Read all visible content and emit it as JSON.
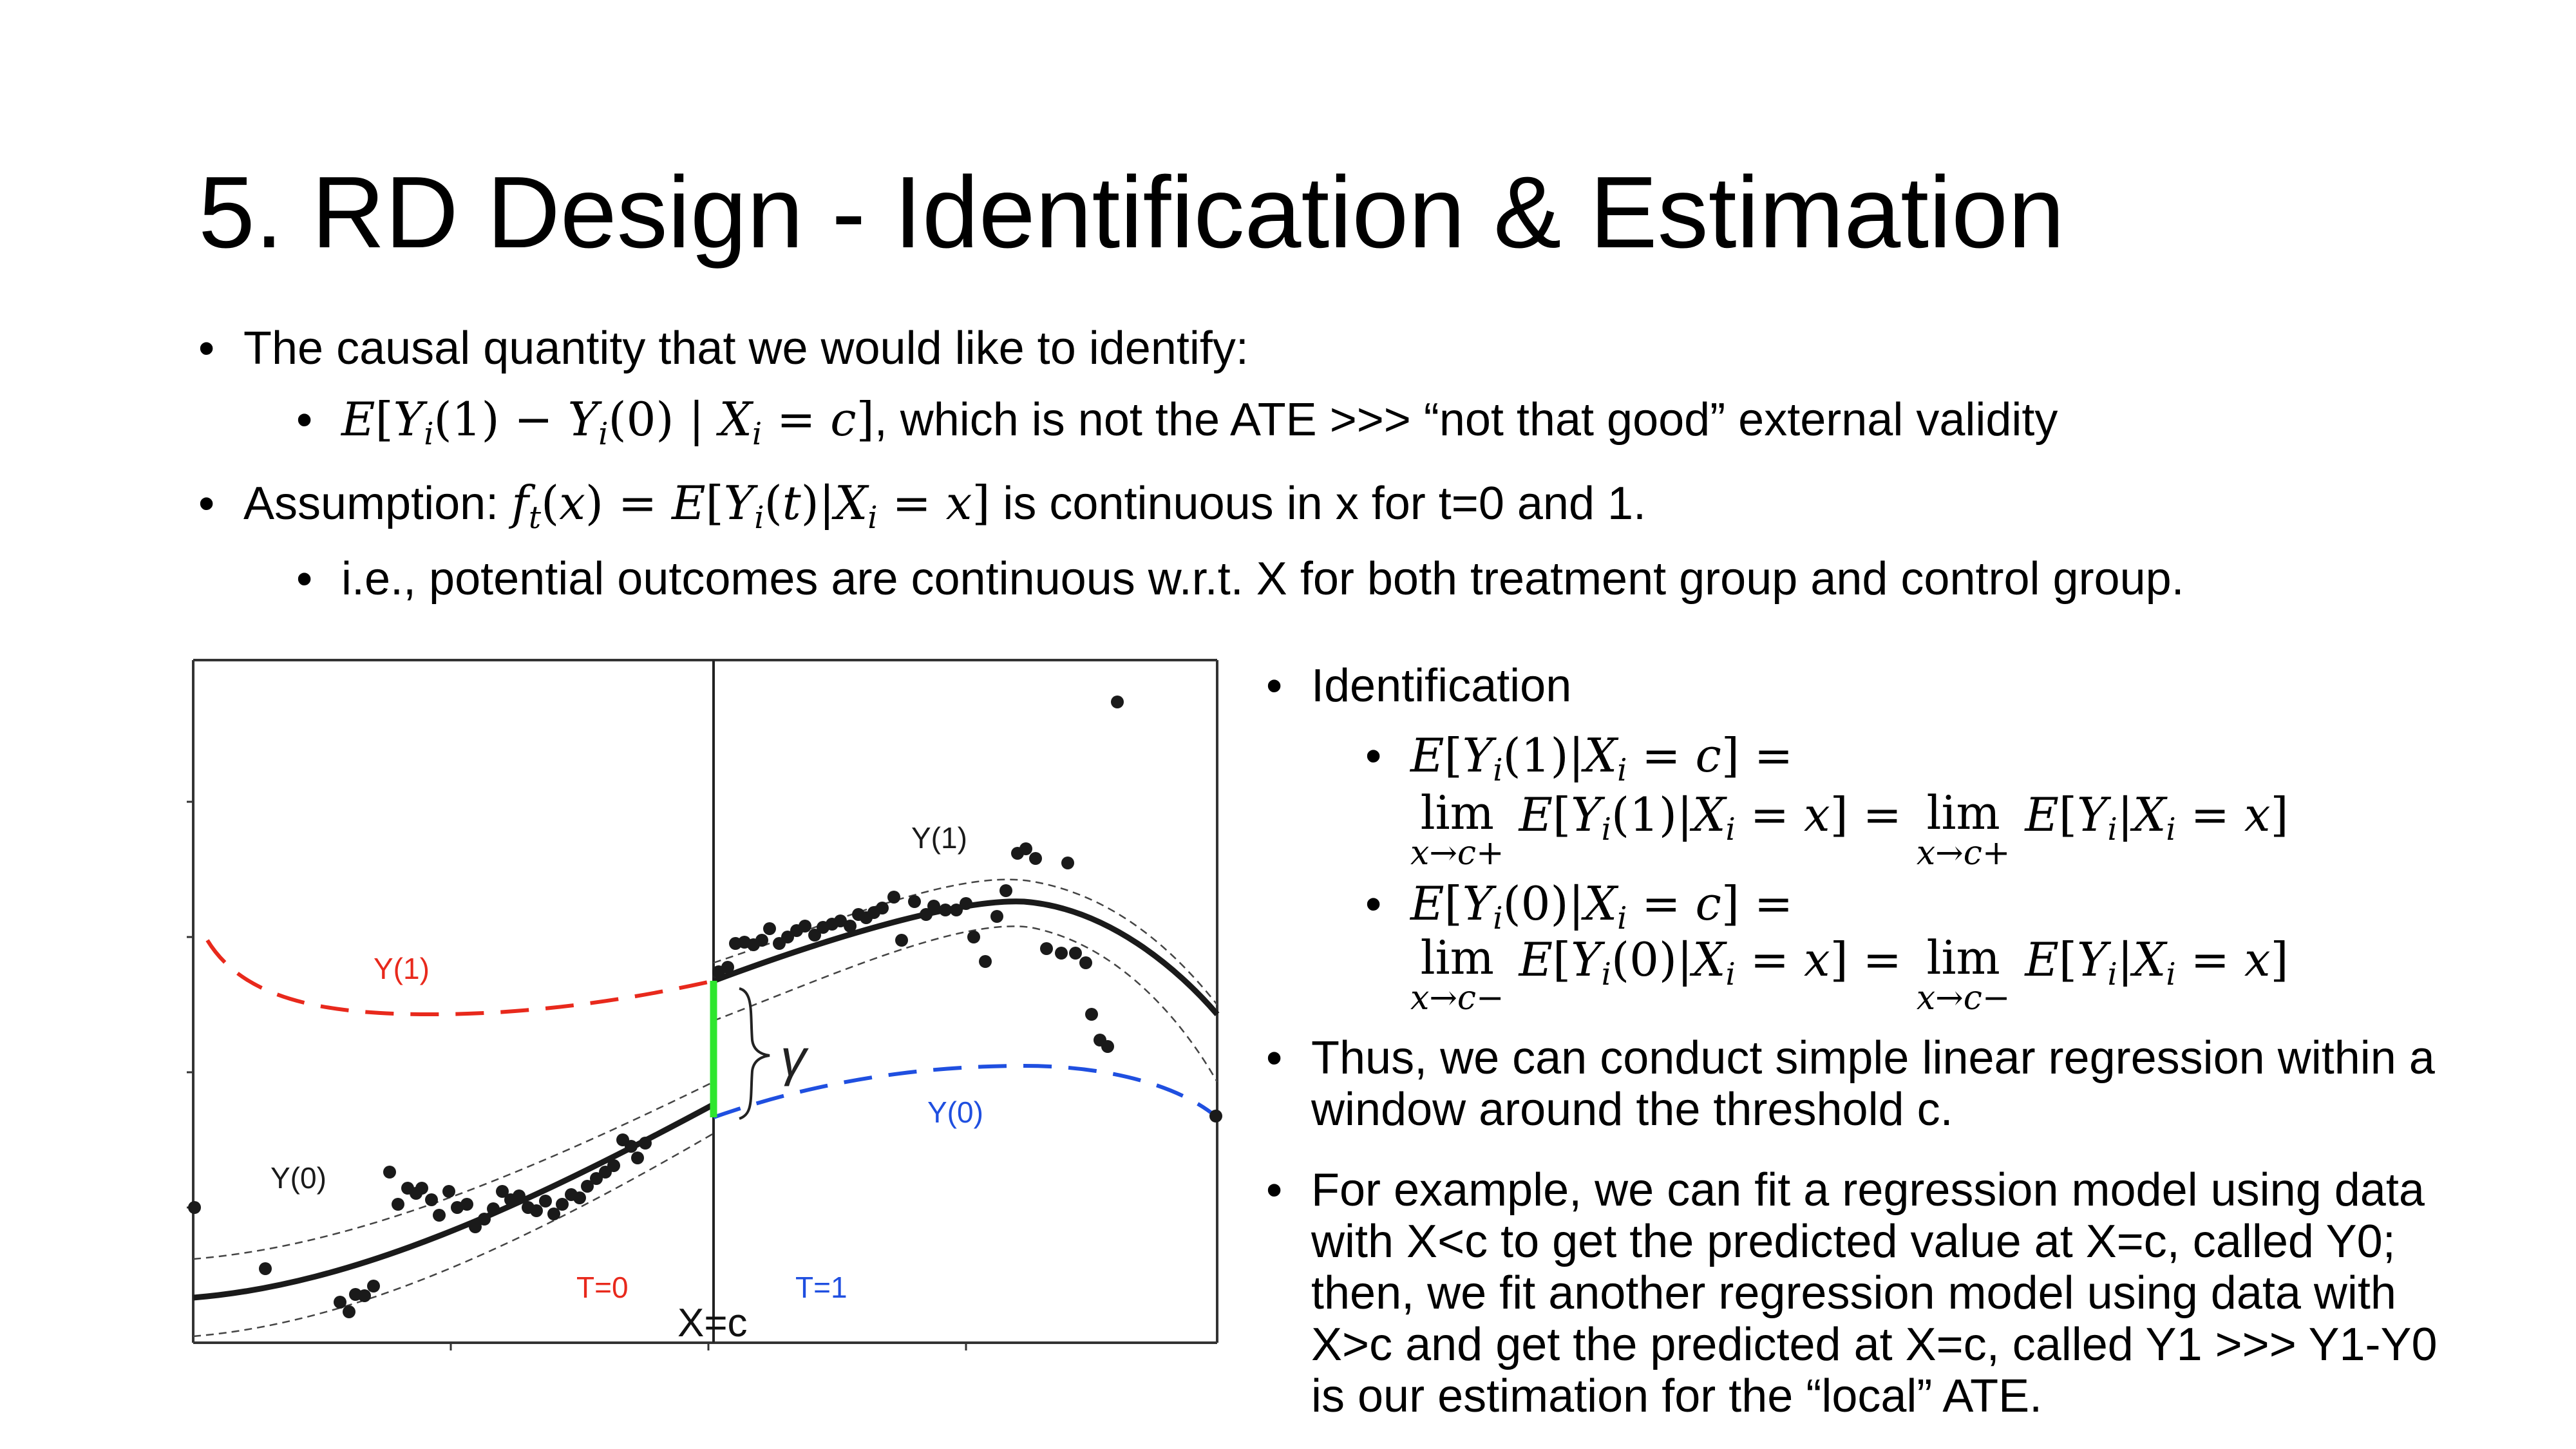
{
  "title": "5. RD Design - Identification & Estimation",
  "bullets": {
    "b1": "The causal quantity that we would like to identify:",
    "b1a_math": "E[Yi(1) − Yi(0) | Xi = c]",
    "b1a_text": ", which is not the ATE >>> “not that good” external validity",
    "b2_prefix": "Assumption: ",
    "b2_math": "ft(x) = E[Yi(t)|Xi = x]",
    "b2_suffix": " is continuous in x for t=0 and 1.",
    "b2a": "i.e., potential outcomes are continuous w.r.t. X for both treatment group and control group."
  },
  "right": {
    "identification": "Identification",
    "eq1_line1": "E[Yi(1)|Xi = c] =",
    "eq1_line2": "lim x→c+ E[Yi(1)|Xi = x] = lim x→c+ E[Yi|Xi = x]",
    "eq2_line1": "E[Yi(0)|Xi = c] =",
    "eq2_line2": "lim x→c− E[Yi(0)|Xi = x] = lim x→c− E[Yi|Xi = x]",
    "thus_1": "Thus, we can conduct simple linear regression within a",
    "thus_2": "window around the threshold c.",
    "ex_1": "For example, we can fit a regression model using data",
    "ex_2": "with X<c to get the predicted value at X=c, called Y0;",
    "ex_3": "then, we fit another regression model using data with",
    "ex_4": "X>c and get the predicted at X=c, called Y1 >>> Y1-Y0",
    "ex_5": "is our estimation for the “local” ATE."
  },
  "plot": {
    "label_y1_black": "Y(1)",
    "label_y1_red": "Y(1)",
    "label_y0_black": "Y(0)",
    "label_y0_blue": "Y(0)",
    "label_t0": "T=0",
    "label_t1": "T=1",
    "label_xc": "X=c",
    "label_gamma": "γ",
    "colors": {
      "red": "#e8291c",
      "blue": "#1f4fe0",
      "green": "#2ee62e",
      "black": "#1a1a1a"
    }
  }
}
